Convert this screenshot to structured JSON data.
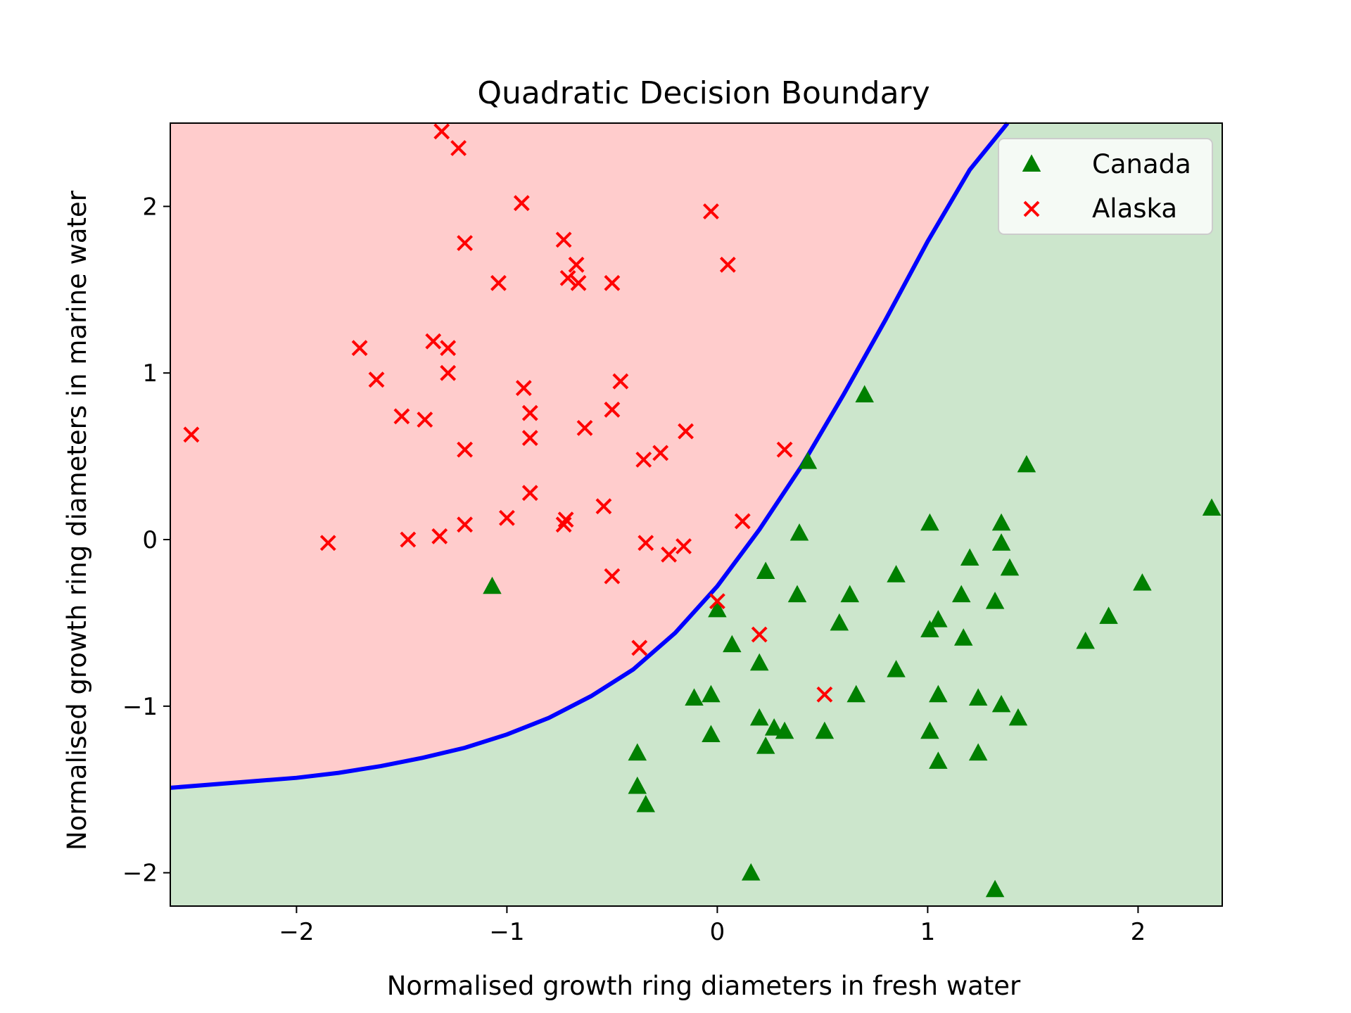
{
  "chart_data": {
    "type": "scatter",
    "title": "Quadratic Decision Boundary",
    "xlabel": "Normalised growth ring diameters in fresh water",
    "ylabel": "Normalised growth ring diameters in marine water",
    "xlim": [
      -2.6,
      2.4
    ],
    "ylim": [
      -2.2,
      2.5
    ],
    "xticks": [
      -2,
      -1,
      0,
      1,
      2
    ],
    "yticks": [
      -2,
      -1,
      0,
      1,
      2
    ],
    "xtick_labels": [
      "−2",
      "−1",
      "0",
      "1",
      "2"
    ],
    "ytick_labels": [
      "−2",
      "−1",
      "0",
      "1",
      "2"
    ],
    "grid": false,
    "legend_position": "top-right",
    "colors": {
      "canada": "#008000",
      "alaska": "#ff0000",
      "boundary": "#0000ff",
      "region_alaska": "#ffcccc",
      "region_canada": "#cce6cc"
    },
    "boundary": {
      "x": [
        -2.6,
        -2.4,
        -2.2,
        -2.0,
        -1.8,
        -1.6,
        -1.4,
        -1.2,
        -1.0,
        -0.8,
        -0.6,
        -0.4,
        -0.2,
        0.0,
        0.2,
        0.4,
        0.6,
        0.8,
        1.0,
        1.2,
        1.38
      ],
      "y": [
        -1.49,
        -1.47,
        -1.45,
        -1.43,
        -1.4,
        -1.36,
        -1.31,
        -1.25,
        -1.17,
        -1.07,
        -0.94,
        -0.78,
        -0.56,
        -0.28,
        0.06,
        0.44,
        0.87,
        1.32,
        1.79,
        2.22,
        2.5
      ]
    },
    "series": [
      {
        "name": "Canada",
        "marker": "triangle",
        "x": [
          0.7,
          0.43,
          1.47,
          2.35,
          0.39,
          1.01,
          1.35,
          1.35,
          1.2,
          1.39,
          0.23,
          0.85,
          1.16,
          1.32,
          -1.07,
          0.38,
          0.63,
          1.05,
          1.01,
          0.0,
          0.58,
          1.17,
          1.75,
          1.86,
          2.02,
          0.07,
          0.2,
          0.85,
          -0.11,
          -0.03,
          0.66,
          1.05,
          1.24,
          1.35,
          1.43,
          0.2,
          0.27,
          0.32,
          0.51,
          1.01,
          -0.03,
          0.23,
          1.24,
          1.05,
          -0.38,
          -0.38,
          -0.34,
          0.16,
          1.32
        ],
        "y": [
          0.87,
          0.47,
          0.45,
          0.19,
          0.04,
          0.1,
          0.1,
          -0.02,
          -0.11,
          -0.17,
          -0.19,
          -0.21,
          -0.33,
          -0.37,
          -0.28,
          -0.33,
          -0.33,
          -0.48,
          -0.54,
          -0.42,
          -0.5,
          -0.59,
          -0.61,
          -0.46,
          -0.26,
          -0.63,
          -0.74,
          -0.78,
          -0.95,
          -0.93,
          -0.93,
          -0.93,
          -0.95,
          -0.99,
          -1.07,
          -1.07,
          -1.13,
          -1.15,
          -1.15,
          -1.15,
          -1.17,
          -1.24,
          -1.28,
          -1.33,
          -1.28,
          -1.48,
          -1.59,
          -2.0,
          -2.1
        ]
      },
      {
        "name": "Alaska",
        "marker": "x",
        "x": [
          -1.31,
          -1.23,
          -0.93,
          -0.03,
          -1.2,
          -0.73,
          -0.67,
          0.05,
          -0.71,
          -0.66,
          -0.5,
          -1.04,
          -1.7,
          -1.35,
          -1.28,
          -1.28,
          -1.62,
          -0.92,
          -0.46,
          -0.89,
          -0.5,
          -1.5,
          -1.39,
          -0.63,
          -0.89,
          -0.15,
          -2.5,
          -1.2,
          0.32,
          -0.27,
          -0.35,
          -0.89,
          -0.54,
          -0.72,
          -0.73,
          -1.0,
          -1.2,
          0.12,
          -1.32,
          -1.47,
          -1.85,
          -0.34,
          -0.16,
          -0.23,
          -0.5,
          0.0,
          0.2,
          -0.37,
          0.51
        ],
        "y": [
          2.45,
          2.35,
          2.02,
          1.97,
          1.78,
          1.8,
          1.65,
          1.65,
          1.57,
          1.54,
          1.54,
          1.54,
          1.15,
          1.19,
          1.15,
          1.0,
          0.96,
          0.91,
          0.95,
          0.76,
          0.78,
          0.74,
          0.72,
          0.67,
          0.61,
          0.65,
          0.63,
          0.54,
          0.54,
          0.52,
          0.48,
          0.28,
          0.2,
          0.12,
          0.09,
          0.13,
          0.09,
          0.11,
          0.02,
          0.0,
          -0.02,
          -0.02,
          -0.04,
          -0.09,
          -0.22,
          -0.37,
          -0.57,
          -0.65,
          -0.93
        ]
      }
    ]
  }
}
